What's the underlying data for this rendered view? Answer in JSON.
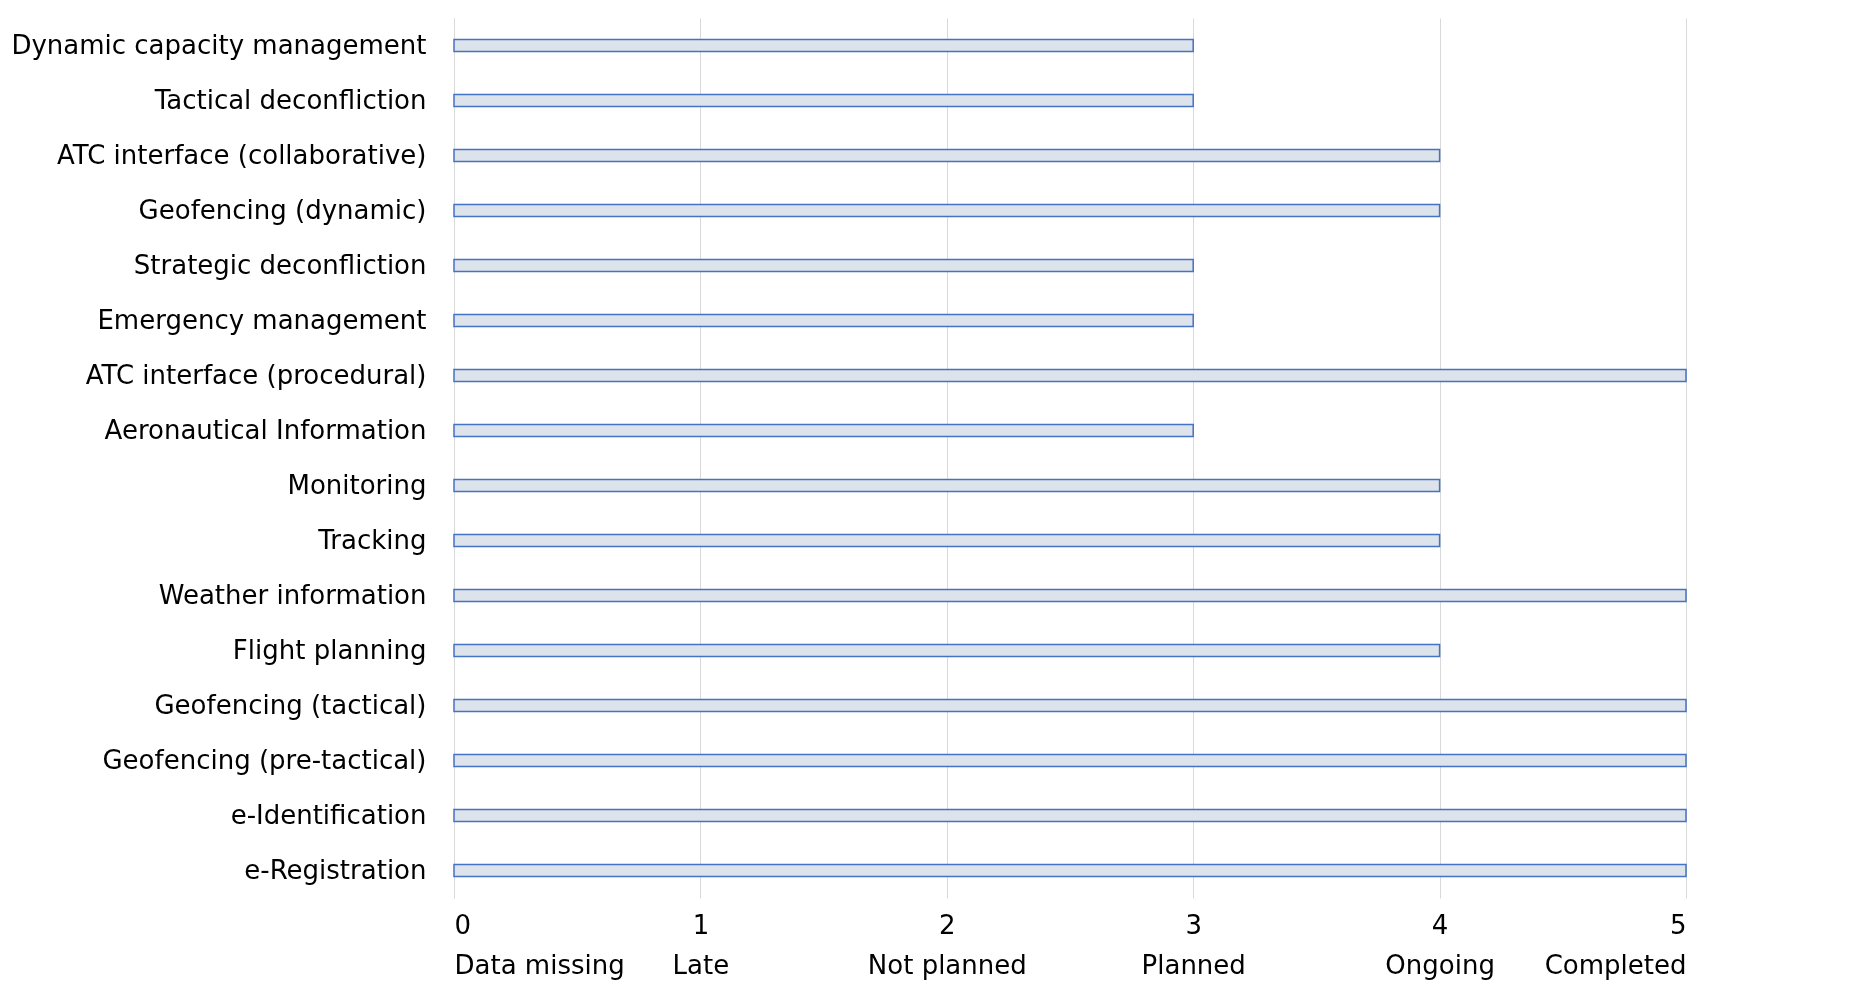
{
  "chart_data": {
    "type": "bar",
    "orientation": "horizontal",
    "categories": [
      "Dynamic capacity management",
      "Tactical deconfliction",
      "ATC interface (collaborative)",
      "Geofencing (dynamic)",
      "Strategic deconfliction",
      "Emergency management",
      "ATC interface (procedural)",
      "Aeronautical Information",
      "Monitoring",
      "Tracking",
      "Weather information",
      "Flight planning",
      "Geofencing (tactical)",
      "Geofencing (pre-tactical)",
      "e-Identification",
      "e-Registration"
    ],
    "values": [
      3,
      3,
      4,
      4,
      3,
      3,
      5,
      3,
      4,
      4,
      5,
      4,
      5,
      5,
      5,
      5
    ],
    "color": "#dce3ea",
    "xlim": [
      0,
      5
    ],
    "xticks": [
      {
        "value": 0,
        "label": "0\nData missing"
      },
      {
        "value": 1,
        "label": "1\nLate"
      },
      {
        "value": 2,
        "label": "2\nNot planned"
      },
      {
        "value": 3,
        "label": "3\nPlanned"
      },
      {
        "value": 4,
        "label": "4\nOngoing"
      },
      {
        "value": 5,
        "label": "5\nCompleted"
      }
    ],
    "grid": "x"
  }
}
